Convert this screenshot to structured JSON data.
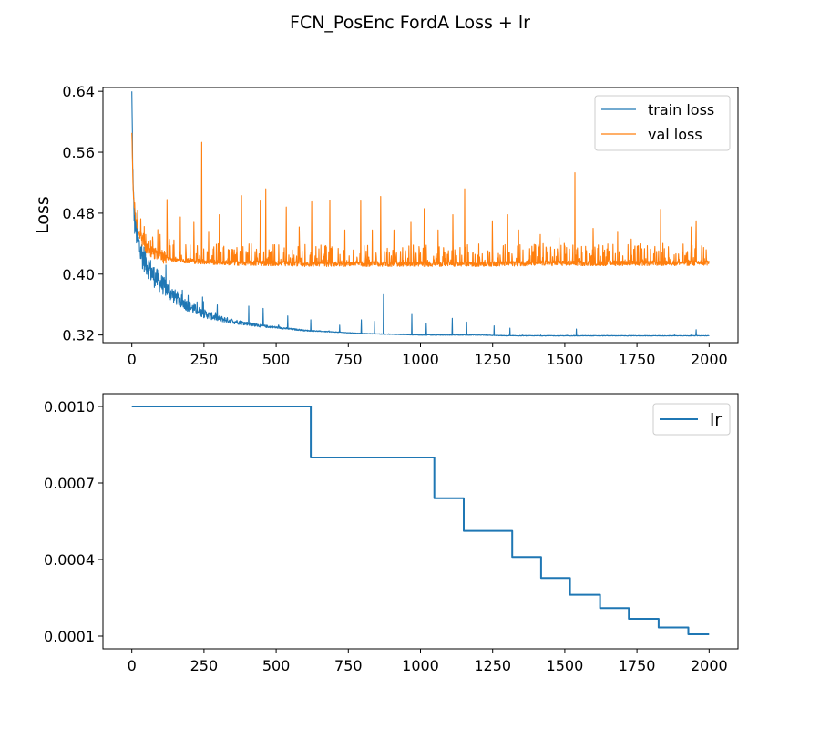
{
  "chart_data": [
    {
      "type": "line",
      "title": "FCN_PosEnc FordA Loss + lr",
      "xlabel": "",
      "ylabel": "Loss",
      "xlim": [
        -100,
        2100
      ],
      "ylim": [
        0.31,
        0.645
      ],
      "xticks": [
        0,
        250,
        500,
        750,
        1000,
        1250,
        1500,
        1750,
        2000
      ],
      "xtick_labels": [
        "0",
        "250",
        "500",
        "750",
        "1000",
        "1250",
        "1500",
        "1750",
        "2000"
      ],
      "yticks": [
        0.32,
        0.4,
        0.48,
        0.56,
        0.64
      ],
      "ytick_labels": [
        "0.32",
        "0.40",
        "0.48",
        "0.56",
        "0.64"
      ],
      "grid": false,
      "legend": "top-right",
      "series": [
        {
          "name": "train loss",
          "color": "#1f77b4",
          "x": [
            0,
            5,
            10,
            20,
            30,
            50,
            75,
            100,
            150,
            200,
            250,
            300,
            350,
            400,
            450,
            500,
            600,
            700,
            800,
            900,
            1000,
            1100,
            1200,
            1300,
            1400,
            1500,
            1600,
            1700,
            1800,
            1900,
            2000
          ],
          "values": [
            0.633,
            0.5,
            0.47,
            0.445,
            0.43,
            0.415,
            0.398,
            0.388,
            0.37,
            0.357,
            0.348,
            0.342,
            0.338,
            0.335,
            0.332,
            0.33,
            0.326,
            0.324,
            0.322,
            0.321,
            0.32,
            0.32,
            0.32,
            0.319,
            0.319,
            0.319,
            0.319,
            0.319,
            0.319,
            0.319,
            0.319
          ],
          "spikes": [
            {
              "x": 130,
              "y": 0.392
            },
            {
              "x": 195,
              "y": 0.372
            },
            {
              "x": 245,
              "y": 0.37
            },
            {
              "x": 405,
              "y": 0.358
            },
            {
              "x": 455,
              "y": 0.355
            },
            {
              "x": 540,
              "y": 0.345
            },
            {
              "x": 620,
              "y": 0.34
            },
            {
              "x": 720,
              "y": 0.333
            },
            {
              "x": 795,
              "y": 0.34
            },
            {
              "x": 840,
              "y": 0.338
            },
            {
              "x": 872,
              "y": 0.373
            },
            {
              "x": 970,
              "y": 0.347
            },
            {
              "x": 1020,
              "y": 0.335
            },
            {
              "x": 1110,
              "y": 0.342
            },
            {
              "x": 1160,
              "y": 0.337
            },
            {
              "x": 1255,
              "y": 0.332
            },
            {
              "x": 1310,
              "y": 0.329
            },
            {
              "x": 1540,
              "y": 0.328
            },
            {
              "x": 1955,
              "y": 0.327
            }
          ]
        },
        {
          "name": "val loss",
          "color": "#ff7f0e",
          "x": [
            0,
            5,
            10,
            20,
            30,
            50,
            75,
            100,
            150,
            200,
            250,
            300,
            400,
            500,
            600,
            700,
            800,
            1000,
            1200,
            1400,
            1600,
            1800,
            2000
          ],
          "values": [
            0.59,
            0.51,
            0.485,
            0.462,
            0.45,
            0.438,
            0.43,
            0.426,
            0.422,
            0.42,
            0.419,
            0.418,
            0.417,
            0.417,
            0.416,
            0.416,
            0.416,
            0.416,
            0.416,
            0.417,
            0.417,
            0.417,
            0.417
          ],
          "spikes": [
            {
              "x": 122,
              "y": 0.498
            },
            {
              "x": 168,
              "y": 0.475
            },
            {
              "x": 215,
              "y": 0.468
            },
            {
              "x": 242,
              "y": 0.573
            },
            {
              "x": 266,
              "y": 0.455
            },
            {
              "x": 303,
              "y": 0.478
            },
            {
              "x": 380,
              "y": 0.503
            },
            {
              "x": 445,
              "y": 0.496
            },
            {
              "x": 464,
              "y": 0.512
            },
            {
              "x": 535,
              "y": 0.488
            },
            {
              "x": 580,
              "y": 0.462
            },
            {
              "x": 623,
              "y": 0.495
            },
            {
              "x": 686,
              "y": 0.497
            },
            {
              "x": 738,
              "y": 0.458
            },
            {
              "x": 793,
              "y": 0.496
            },
            {
              "x": 833,
              "y": 0.458
            },
            {
              "x": 862,
              "y": 0.502
            },
            {
              "x": 908,
              "y": 0.458
            },
            {
              "x": 967,
              "y": 0.468
            },
            {
              "x": 1013,
              "y": 0.486
            },
            {
              "x": 1061,
              "y": 0.458
            },
            {
              "x": 1112,
              "y": 0.478
            },
            {
              "x": 1153,
              "y": 0.512
            },
            {
              "x": 1249,
              "y": 0.47
            },
            {
              "x": 1302,
              "y": 0.478
            },
            {
              "x": 1340,
              "y": 0.458
            },
            {
              "x": 1415,
              "y": 0.452
            },
            {
              "x": 1480,
              "y": 0.448
            },
            {
              "x": 1535,
              "y": 0.533
            },
            {
              "x": 1598,
              "y": 0.46
            },
            {
              "x": 1683,
              "y": 0.455
            },
            {
              "x": 1730,
              "y": 0.446
            },
            {
              "x": 1832,
              "y": 0.485
            },
            {
              "x": 1938,
              "y": 0.462
            },
            {
              "x": 1955,
              "y": 0.47
            },
            {
              "x": 1990,
              "y": 0.432
            }
          ]
        }
      ]
    },
    {
      "type": "line",
      "title": "",
      "xlabel": "",
      "ylabel": "",
      "xlim": [
        -100,
        2100
      ],
      "ylim": [
        5e-05,
        0.00105
      ],
      "xticks": [
        0,
        250,
        500,
        750,
        1000,
        1250,
        1500,
        1750,
        2000
      ],
      "xtick_labels": [
        "0",
        "250",
        "500",
        "750",
        "1000",
        "1250",
        "1500",
        "1750",
        "2000"
      ],
      "yticks": [
        0.0001,
        0.0004,
        0.0007,
        0.001
      ],
      "ytick_labels": [
        "0.0001",
        "0.0004",
        "0.0007",
        "0.0010"
      ],
      "grid": false,
      "legend": "top-right",
      "series": [
        {
          "name": "lr",
          "color": "#1f77b4",
          "step": true,
          "x": [
            0,
            620,
            1048,
            1150,
            1318,
            1418,
            1518,
            1622,
            1722,
            1825,
            1928,
            2000
          ],
          "values": [
            0.001,
            0.0008,
            0.00064,
            0.000512,
            0.00041,
            0.000328,
            0.000262,
            0.00021,
            0.000168,
            0.000134,
            0.000107,
            0.000107
          ]
        }
      ]
    }
  ]
}
